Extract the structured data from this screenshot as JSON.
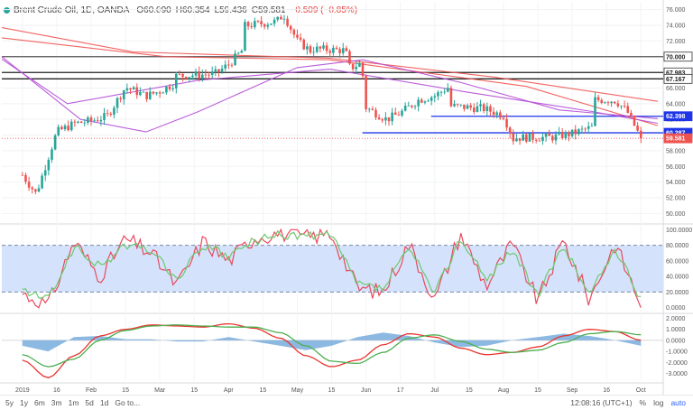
{
  "header": {
    "symbol": "Brent Crude Oil, 1D, OANDA",
    "open": "O60.090",
    "high": "H60.354",
    "low": "L59.436",
    "close": "C59.581",
    "change": "−0.509 (−0.85%)"
  },
  "bottom_bar": {
    "timeframes": [
      "5y",
      "1y",
      "6m",
      "3m",
      "1m",
      "5d",
      "1d",
      "Go to..."
    ],
    "clock": "12:08:16 (UTC+1)",
    "percent": "%",
    "log": "log",
    "auto": "auto"
  },
  "colors": {
    "up": "#26a69a",
    "down": "#ef5350",
    "stoch_k": "#e84a5f",
    "stoch_d": "#6ec86e",
    "macd": "#e8352f",
    "signal": "#4caf50",
    "histogram": "#5b9bd5",
    "ma_red": "#ef5350",
    "ma_purple": "#b44bd6",
    "level_blue": "#1e35e6",
    "band_fill": "#d4e3fb"
  },
  "chart_data": [
    {
      "type": "candlestick",
      "title": "Brent Crude Oil, 1D, OANDA",
      "x_tick_labels": [
        "2019",
        "16",
        "Feb",
        "15",
        "Mar",
        "15",
        "Apr",
        "15",
        "May",
        "15",
        "Jun",
        "17",
        "Jul",
        "15",
        "Aug",
        "15",
        "Sep",
        "16",
        "Oct"
      ],
      "y_tick_labels": [
        "76.000",
        "74.000",
        "72.000",
        "70.000",
        "68.000",
        "66.000",
        "64.000",
        "62.000",
        "60.000",
        "58.000",
        "56.000",
        "54.000",
        "52.000",
        "50.000"
      ],
      "ylim": [
        49.0,
        77.0
      ],
      "price_tags": [
        {
          "label": "70.000",
          "value": 70.0,
          "color": "#ffffff"
        },
        {
          "label": "67.983",
          "value": 67.983,
          "color": "#ffffff"
        },
        {
          "label": "67.167",
          "value": 67.167,
          "color": "#ffffff"
        },
        {
          "label": "62.398",
          "value": 62.398,
          "color": "#1e35e6"
        },
        {
          "label": "60.287",
          "value": 60.287,
          "color": "#1e35e6"
        },
        {
          "label": "59.581",
          "value": 59.581,
          "color": "#ef5350"
        }
      ],
      "horizontal_lines": [
        {
          "value": 70.0,
          "color": "#555555"
        },
        {
          "value": 67.983,
          "color": "#222222"
        },
        {
          "value": 67.167,
          "color": "#222222"
        },
        {
          "value": 62.398,
          "color": "#1e35e6",
          "from_month": "Jul"
        },
        {
          "value": 60.287,
          "color": "#1e35e6",
          "from_month": "Jun"
        }
      ],
      "close_path": [
        [
          "2019",
          54.9
        ],
        [
          "Jan-7",
          52.5
        ],
        [
          "16",
          60.4
        ],
        [
          "Jan-24",
          61.5
        ],
        [
          "Feb",
          61.8
        ],
        [
          "Feb-8",
          62.4
        ],
        [
          "15",
          66.1
        ],
        [
          "Feb-25",
          65.0
        ],
        [
          "Mar",
          65.6
        ],
        [
          "Mar-8",
          66.7
        ],
        [
          "15",
          67.2
        ],
        [
          "Mar-25",
          67.8
        ],
        [
          "Apr",
          69.0
        ],
        [
          "Apr-8",
          71.1
        ],
        [
          "15",
          71.8
        ],
        [
          "Apr-22",
          74.5
        ],
        [
          "Apr-25",
          75.4
        ],
        [
          "May",
          72.0
        ],
        [
          "May-8",
          70.5
        ],
        [
          "15",
          72.1
        ],
        [
          "May-22",
          70.8
        ],
        [
          "May-24",
          68.5
        ],
        [
          "May-29",
          69.2
        ],
        [
          "Jun",
          63.5
        ],
        [
          "Jun-10",
          62.0
        ],
        [
          "17",
          62.8
        ],
        [
          "Jun-24",
          64.5
        ],
        [
          "Jul",
          65.0
        ],
        [
          "Jul-8",
          66.3
        ],
        [
          "15",
          66.6
        ],
        [
          "Jul-22",
          63.4
        ],
        [
          "Aug",
          62.5
        ],
        [
          "Aug-6",
          59.0
        ],
        [
          "15",
          59.5
        ],
        [
          "Aug-22",
          59.7
        ],
        [
          "Sep",
          60.2
        ],
        [
          "Sep-10",
          61.0
        ],
        [
          "16",
          67.6
        ],
        [
          "Sep-20",
          64.4
        ],
        [
          "Sep-25",
          63.0
        ],
        [
          "Oct",
          59.6
        ]
      ],
      "moving_averages": [
        {
          "color": "#ef5350",
          "path": [
            [
              0,
              73.7
            ],
            [
              0.2,
              70.6
            ],
            [
              0.5,
              69.8
            ],
            [
              0.75,
              67.4
            ],
            [
              1.0,
              64.3
            ]
          ]
        },
        {
          "color": "#ef5350",
          "path": [
            [
              0,
              72.4
            ],
            [
              0.25,
              70.0
            ],
            [
              0.5,
              69.6
            ],
            [
              0.8,
              66.2
            ],
            [
              1.0,
              61.2
            ]
          ]
        },
        {
          "color": "#b44bd6",
          "path": [
            [
              0,
              70.0
            ],
            [
              0.12,
              62.0
            ],
            [
              0.22,
              60.4
            ],
            [
              0.3,
              63.0
            ],
            [
              0.45,
              68.6
            ],
            [
              0.55,
              69.6
            ],
            [
              0.7,
              66.7
            ],
            [
              0.85,
              63.2
            ],
            [
              1.0,
              62.1
            ]
          ]
        },
        {
          "color": "#b44bd6",
          "path": [
            [
              0,
              69.7
            ],
            [
              0.1,
              64.0
            ],
            [
              0.3,
              67.0
            ],
            [
              0.5,
              68.4
            ],
            [
              0.7,
              65.6
            ],
            [
              0.9,
              63.0
            ],
            [
              1.0,
              61.5
            ]
          ]
        }
      ]
    },
    {
      "type": "line",
      "series": [
        {
          "color": "#e84a5f",
          "values": [
            18,
            3,
            85,
            40,
            88,
            70,
            28,
            85,
            60,
            90,
            96,
            90,
            95,
            25,
            20,
            82,
            10,
            95,
            28,
            82,
            8,
            86,
            10,
            82,
            4
          ]
        },
        {
          "color": "#6ec86e",
          "values": [
            22,
            10,
            78,
            52,
            80,
            74,
            35,
            80,
            65,
            86,
            93,
            92,
            92,
            30,
            24,
            76,
            18,
            90,
            35,
            76,
            14,
            80,
            16,
            76,
            10
          ]
        }
      ],
      "y_tick_labels": [
        "100.0000",
        "80.0000",
        "60.0000",
        "40.0000",
        "20.0000",
        "0.0000"
      ],
      "ylim": [
        -5,
        105
      ],
      "band": [
        20,
        80
      ]
    },
    {
      "type": "line",
      "series": [
        {
          "color": "#e8352f",
          "values": [
            -1.8,
            -3.4,
            -1.4,
            0.4,
            1.0,
            1.4,
            1.3,
            1.2,
            1.5,
            1.1,
            0.2,
            -1.4,
            -2.4,
            -1.8,
            -0.4,
            0.6,
            0.3,
            -0.7,
            -1.3,
            -1.1,
            -0.6,
            0.4,
            1.0,
            0.8,
            0.0
          ]
        },
        {
          "color": "#4caf50",
          "values": [
            -1.3,
            -2.4,
            -1.7,
            0.0,
            0.9,
            1.3,
            1.4,
            1.3,
            1.2,
            1.2,
            0.7,
            -0.5,
            -1.9,
            -2.1,
            -1.1,
            0.2,
            0.5,
            -0.1,
            -0.8,
            -1.1,
            -0.9,
            -0.2,
            0.6,
            0.8,
            0.5
          ]
        }
      ],
      "histogram_values": [
        -0.5,
        -1.0,
        0.3,
        0.4,
        0.1,
        0.1,
        -0.1,
        -0.1,
        0.3,
        -0.1,
        -0.5,
        -0.9,
        -0.5,
        0.3,
        0.7,
        0.4,
        -0.2,
        -0.6,
        -0.5,
        0.0,
        0.3,
        0.6,
        0.4,
        0.0,
        -0.5
      ],
      "y_tick_labels": [
        "2.0000",
        "1.0000",
        "0.0000",
        "-1.0000",
        "-2.0000",
        "-3.0000"
      ],
      "ylim": [
        -3.7,
        2.2
      ]
    }
  ]
}
